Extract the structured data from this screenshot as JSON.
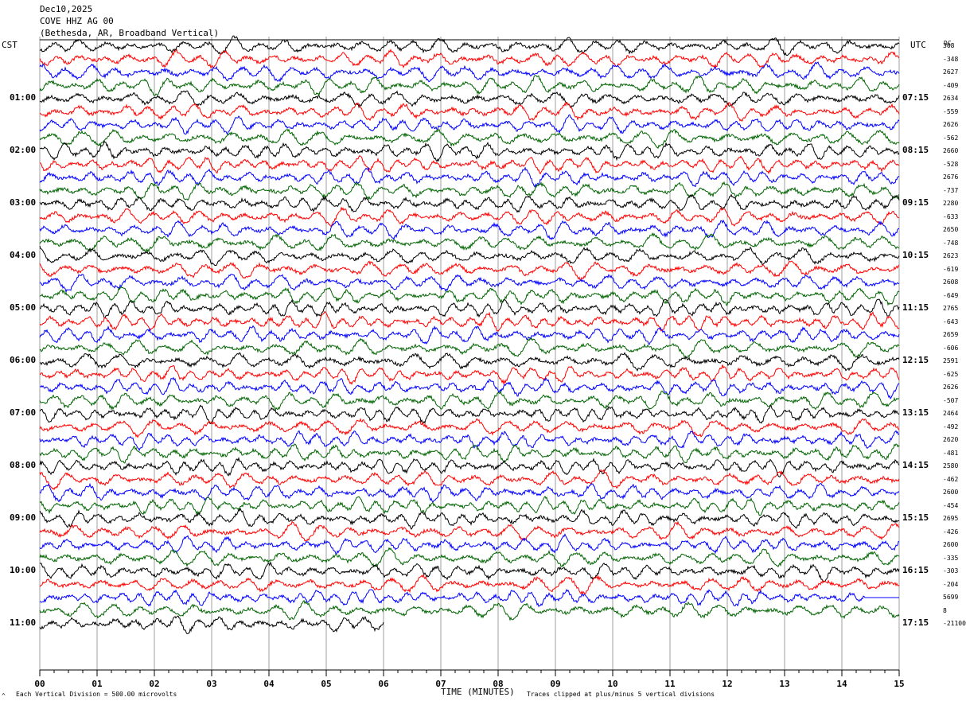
{
  "header": {
    "date": "Dec10,2025",
    "station": "COVE HHZ AG 00",
    "location": "(Bethesda, AR, Broadband Vertical)"
  },
  "left_timezone": "CST",
  "right_timezone": "UTC",
  "dc_label": "DC",
  "footer": {
    "scale": "Each Vertical Division =  500.00 microvolts",
    "xlabel": "TIME (MINUTES)",
    "clip_note": "Traces clipped at plus/minus 5 vertical divisions",
    "corner_mark": "^"
  },
  "colors": {
    "cycle": [
      "#000000",
      "#ff0000",
      "#0000ff",
      "#006400"
    ],
    "grid": "#888888"
  },
  "chart_data": {
    "type": "line",
    "title": "COVE HHZ AG 00",
    "xlabel": "TIME (MINUTES)",
    "xlim": [
      0,
      15
    ],
    "x_ticks": [
      "00",
      "01",
      "02",
      "03",
      "04",
      "05",
      "06",
      "07",
      "08",
      "09",
      "10",
      "11",
      "12",
      "13",
      "14",
      "15"
    ],
    "trace_count": 45,
    "trace_interval_minutes": 15,
    "color_cycle": [
      "black",
      "red",
      "blue",
      "green"
    ],
    "last_trace_end_minute": 6,
    "flat_segment": {
      "trace_index": 42,
      "from_minute": 14.4,
      "to_minute": 15
    },
    "left_hour_labels": [
      {
        "trace_index": 4,
        "label": "01:00"
      },
      {
        "trace_index": 8,
        "label": "02:00"
      },
      {
        "trace_index": 12,
        "label": "03:00"
      },
      {
        "trace_index": 16,
        "label": "04:00"
      },
      {
        "trace_index": 20,
        "label": "05:00"
      },
      {
        "trace_index": 24,
        "label": "06:00"
      },
      {
        "trace_index": 28,
        "label": "07:00"
      },
      {
        "trace_index": 32,
        "label": "08:00"
      },
      {
        "trace_index": 36,
        "label": "09:00"
      },
      {
        "trace_index": 40,
        "label": "10:00"
      },
      {
        "trace_index": 44,
        "label": "11:00"
      }
    ],
    "right_hour_labels": [
      {
        "trace_index": 4,
        "label": "07:15"
      },
      {
        "trace_index": 8,
        "label": "08:15"
      },
      {
        "trace_index": 12,
        "label": "09:15"
      },
      {
        "trace_index": 16,
        "label": "10:15"
      },
      {
        "trace_index": 20,
        "label": "11:15"
      },
      {
        "trace_index": 24,
        "label": "12:15"
      },
      {
        "trace_index": 28,
        "label": "13:15"
      },
      {
        "trace_index": 32,
        "label": "14:15"
      },
      {
        "trace_index": 36,
        "label": "15:15"
      },
      {
        "trace_index": 40,
        "label": "16:15"
      },
      {
        "trace_index": 44,
        "label": "17:15"
      }
    ],
    "dc_offsets": [
      "308",
      "-348",
      "2627",
      "-409",
      "2634",
      "-559",
      "2626",
      "-562",
      "2660",
      "-528",
      "2676",
      "-737",
      "2280",
      "-633",
      "2650",
      "-748",
      "2623",
      "-619",
      "2608",
      "-649",
      "2765",
      "-643",
      "2659",
      "-606",
      "2591",
      "-625",
      "2626",
      "-507",
      "2464",
      "-492",
      "2620",
      "-481",
      "2580",
      "-462",
      "2600",
      "-454",
      "2695",
      "-426",
      "2600",
      "-335",
      "-303",
      "-204",
      "5699",
      "8",
      "-21100"
    ]
  }
}
